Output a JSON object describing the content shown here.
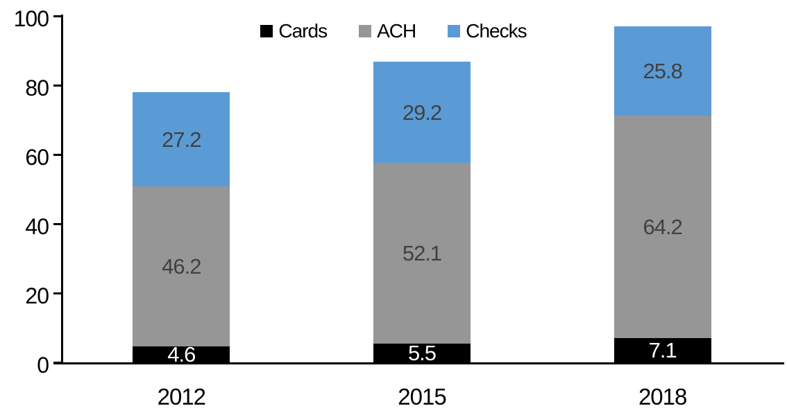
{
  "chart_data": {
    "type": "bar",
    "stacked": true,
    "title": "",
    "categories": [
      "2012",
      "2015",
      "2018"
    ],
    "series": [
      {
        "name": "Cards",
        "color": "#000000",
        "label_color": "#ffffff",
        "values": [
          4.6,
          5.5,
          7.1
        ]
      },
      {
        "name": "ACH",
        "color": "#969696",
        "label_color": "#404040",
        "values": [
          46.2,
          52.1,
          64.2
        ]
      },
      {
        "name": "Checks",
        "color": "#5B9BD5",
        "label_color": "#404040",
        "values": [
          27.2,
          29.2,
          25.8
        ]
      }
    ],
    "totals": [
      78.0,
      86.8,
      97.1
    ],
    "xlabel": "",
    "ylabel": "",
    "ylim": [
      0,
      100
    ],
    "yticks": [
      "0",
      "20",
      "40",
      "60",
      "80",
      "100"
    ],
    "grid": false,
    "legend_position": "top-center",
    "axis_color": "#000000",
    "background_color": "#ffffff"
  }
}
